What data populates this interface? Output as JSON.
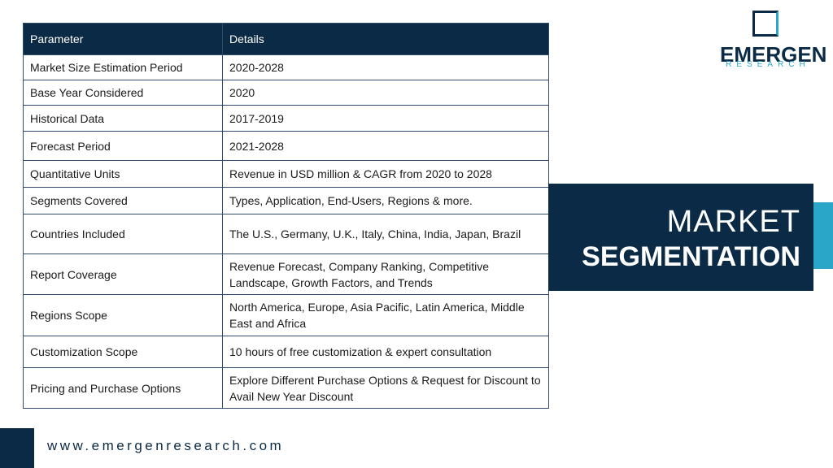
{
  "logo": {
    "name": "EMERGEN",
    "tagline": "RESEARCH"
  },
  "table": {
    "header": [
      "Parameter",
      "Details"
    ],
    "rows": [
      [
        "Market Size Estimation Period",
        "2020-2028"
      ],
      [
        "Base Year Considered",
        "2020"
      ],
      [
        "Historical Data",
        "2017-2019"
      ],
      [
        "Forecast Period",
        "2021-2028"
      ],
      [
        "Quantitative Units",
        "Revenue in USD million & CAGR from 2020 to 2028"
      ],
      [
        "Segments Covered",
        "Types, Application, End-Users, Regions & more."
      ],
      [
        "Countries Included",
        "The U.S., Germany, U.K., Italy, China, India, Japan, Brazil"
      ],
      [
        "Report Coverage",
        "Revenue Forecast, Company Ranking, Competitive Landscape, Growth Factors, and Trends"
      ],
      [
        "Regions Scope",
        "North America, Europe, Asia Pacific, Latin America, Middle East and Africa"
      ],
      [
        "Customization Scope",
        "10 hours of free customization & expert consultation"
      ],
      [
        "Pricing and Purchase Options",
        "Explore Different Purchase Options & Request for Discount to Avail New Year Discount"
      ]
    ]
  },
  "banner": {
    "line1": "MARKET",
    "line2": "SEGMENTATION"
  },
  "footer": {
    "url": "www.emergenresearch.com"
  }
}
